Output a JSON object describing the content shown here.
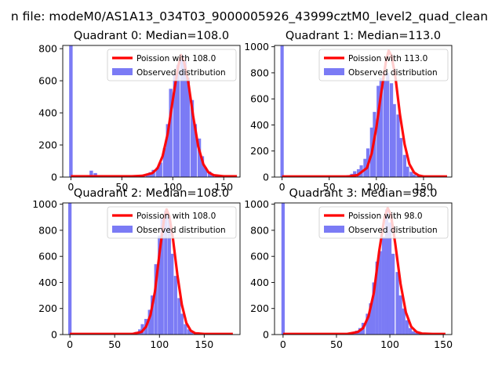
{
  "figure": {
    "suptitle": "n file: modeM0/AS1A13_034T03_9000005926_43999cztM0_level2_quad_clean"
  },
  "chart_data": [
    {
      "type": "bar",
      "title": "Quadrant 0: Median=108.0",
      "xlim": [
        -8,
        166
      ],
      "ylim": [
        0,
        820
      ],
      "xticks": [
        0,
        50,
        100,
        150
      ],
      "yticks": [
        0,
        200,
        400,
        600,
        800
      ],
      "legend": {
        "placement": "top-right",
        "entries": [
          "Poission with 108.0",
          "Observed distribution"
        ]
      },
      "bar_width": 3.4,
      "histogram": {
        "name": "Observed distribution",
        "color": "#7b7bf5",
        "x": [
          0,
          17,
          20,
          24,
          27,
          30,
          34,
          37,
          41,
          44,
          47,
          51,
          54,
          58,
          61,
          64,
          68,
          71,
          75,
          78,
          81,
          85,
          88,
          92,
          95,
          98,
          102,
          105,
          109,
          112,
          115,
          119,
          122,
          126,
          129,
          132,
          136,
          139,
          143,
          146,
          149,
          153,
          156
        ],
        "values": [
          820,
          10,
          40,
          25,
          10,
          8,
          7,
          6,
          5,
          5,
          5,
          5,
          6,
          7,
          8,
          10,
          12,
          15,
          20,
          30,
          45,
          60,
          90,
          180,
          330,
          550,
          640,
          700,
          760,
          720,
          620,
          480,
          330,
          240,
          130,
          60,
          35,
          20,
          15,
          10,
          6,
          4,
          3
        ]
      },
      "curve": {
        "name": "Poission with 108.0",
        "color": "#ff0000",
        "x": [
          0,
          60,
          70,
          80,
          85,
          90,
          95,
          100,
          105,
          108,
          111,
          115,
          120,
          125,
          130,
          135,
          140,
          150,
          163
        ],
        "values": [
          5,
          5,
          8,
          25,
          55,
          130,
          270,
          480,
          680,
          760,
          720,
          600,
          380,
          190,
          80,
          30,
          12,
          5,
          5
        ]
      }
    },
    {
      "type": "bar",
      "title": "Quadrant 1: Median=113.0",
      "xlim": [
        -8,
        180
      ],
      "ylim": [
        0,
        1010
      ],
      "xticks": [
        0,
        50,
        100,
        150
      ],
      "yticks": [
        0,
        200,
        400,
        600,
        800,
        1000
      ],
      "legend": {
        "placement": "top-right",
        "entries": [
          "Poission with 113.0",
          "Observed distribution"
        ]
      },
      "bar_width": 3.5,
      "histogram": {
        "name": "Observed distribution",
        "color": "#7b7bf5",
        "x": [
          0,
          70,
          74,
          77,
          81,
          84,
          88,
          91,
          95,
          98,
          102,
          105,
          109,
          112,
          116,
          119,
          123,
          126,
          130,
          133,
          137,
          140,
          144,
          147,
          151
        ],
        "values": [
          1010,
          15,
          25,
          45,
          60,
          90,
          140,
          220,
          380,
          500,
          700,
          760,
          740,
          800,
          720,
          560,
          480,
          300,
          170,
          80,
          40,
          20,
          12,
          6,
          4
        ]
      },
      "curve": {
        "name": "Poission with 113.0",
        "color": "#ff0000",
        "x": [
          0,
          70,
          80,
          90,
          95,
          100,
          105,
          110,
          113,
          116,
          120,
          125,
          130,
          135,
          140,
          145,
          150,
          160,
          175
        ],
        "values": [
          5,
          5,
          15,
          70,
          180,
          380,
          640,
          880,
          970,
          930,
          780,
          480,
          250,
          100,
          35,
          12,
          5,
          5,
          5
        ]
      }
    },
    {
      "type": "bar",
      "title": "Quadrant 2: Median=108.0",
      "xlim": [
        -8,
        190
      ],
      "ylim": [
        0,
        1010
      ],
      "xticks": [
        0,
        50,
        100,
        150
      ],
      "yticks": [
        0,
        200,
        400,
        600,
        800,
        1000
      ],
      "legend": {
        "placement": "top-right",
        "entries": [
          "Poission with 108.0",
          "Observed distribution"
        ]
      },
      "bar_width": 3.7,
      "histogram": {
        "name": "Observed distribution",
        "color": "#7b7bf5",
        "x": [
          0,
          70,
          74,
          78,
          81,
          85,
          89,
          92,
          96,
          100,
          103,
          107,
          111,
          114,
          118,
          122,
          125,
          129,
          133,
          136,
          140,
          144,
          147
        ],
        "values": [
          1010,
          10,
          20,
          40,
          80,
          120,
          190,
          300,
          540,
          760,
          890,
          950,
          900,
          620,
          450,
          280,
          160,
          80,
          40,
          20,
          10,
          6,
          4
        ]
      },
      "curve": {
        "name": "Poission with 108.0",
        "color": "#ff0000",
        "x": [
          0,
          70,
          80,
          85,
          90,
          95,
          100,
          105,
          108,
          111,
          115,
          120,
          125,
          130,
          135,
          140,
          150,
          160,
          182
        ],
        "values": [
          5,
          5,
          20,
          60,
          150,
          330,
          620,
          880,
          960,
          910,
          740,
          460,
          230,
          90,
          30,
          10,
          5,
          5,
          5
        ]
      }
    },
    {
      "type": "bar",
      "title": "Quadrant 3: Median=98.0",
      "xlim": [
        -8,
        158
      ],
      "ylim": [
        0,
        1010
      ],
      "xticks": [
        0,
        50,
        100,
        150
      ],
      "yticks": [
        0,
        200,
        400,
        600,
        800,
        1000
      ],
      "legend": {
        "placement": "top-right",
        "entries": [
          "Poission with 98.0",
          "Observed distribution"
        ]
      },
      "bar_width": 3.1,
      "histogram": {
        "name": "Observed distribution",
        "color": "#7b7bf5",
        "x": [
          0,
          60,
          63,
          66,
          69,
          72,
          75,
          79,
          82,
          85,
          88,
          91,
          94,
          97,
          100,
          103,
          107,
          110,
          113,
          116,
          119,
          122,
          125,
          128,
          131
        ],
        "values": [
          1010,
          6,
          10,
          18,
          30,
          50,
          90,
          160,
          240,
          400,
          560,
          640,
          750,
          960,
          860,
          620,
          480,
          300,
          200,
          110,
          50,
          25,
          12,
          6,
          4
        ]
      },
      "curve": {
        "name": "Poission with 98.0",
        "color": "#ff0000",
        "x": [
          0,
          60,
          70,
          75,
          80,
          85,
          90,
          95,
          98,
          101,
          105,
          110,
          115,
          120,
          125,
          130,
          140,
          152
        ],
        "values": [
          5,
          5,
          20,
          50,
          140,
          320,
          640,
          900,
          970,
          920,
          700,
          390,
          170,
          60,
          20,
          8,
          5,
          5
        ]
      }
    }
  ]
}
